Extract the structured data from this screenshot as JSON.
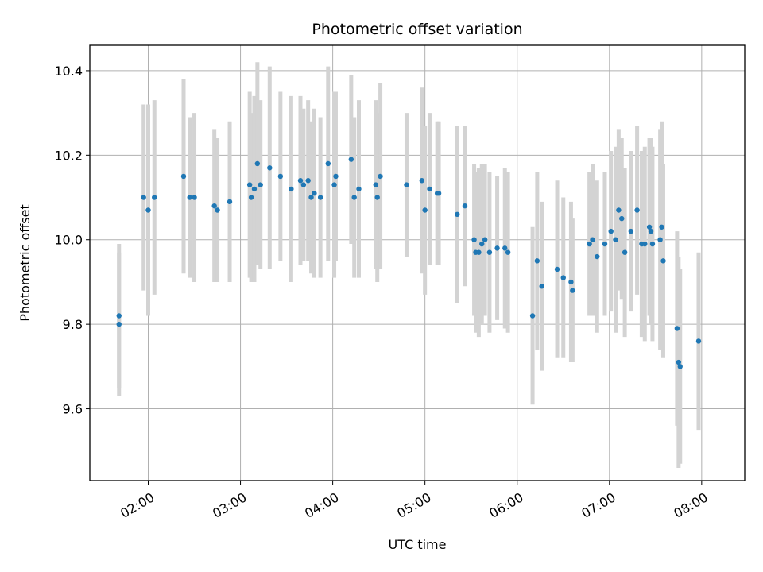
{
  "chart_data": {
    "type": "scatter",
    "title": "Photometric offset variation",
    "xlabel": "UTC time",
    "ylabel": "Photometric offset",
    "xlim": [
      "01:22",
      "08:28"
    ],
    "ylim": [
      9.43,
      10.46
    ],
    "xticks": [
      "02:00",
      "03:00",
      "04:00",
      "05:00",
      "06:00",
      "07:00",
      "08:00"
    ],
    "yticks": [
      "9.6",
      "9.8",
      "10.0",
      "10.2",
      "10.4"
    ],
    "grid": true,
    "colors": {
      "point": "#1f77b4",
      "errorbar": "#d3d3d3",
      "grid": "#b0b0b0"
    },
    "points": [
      [
        "01:41",
        9.8,
        0.17
      ],
      [
        "01:41",
        9.82,
        0.17
      ],
      [
        "01:57",
        10.1,
        0.22
      ],
      [
        "02:00",
        10.07,
        0.25
      ],
      [
        "02:04",
        10.1,
        0.23
      ],
      [
        "02:23",
        10.15,
        0.23
      ],
      [
        "02:27",
        10.1,
        0.19
      ],
      [
        "02:30",
        10.1,
        0.2
      ],
      [
        "02:43",
        10.08,
        0.18
      ],
      [
        "02:45",
        10.07,
        0.17
      ],
      [
        "02:53",
        10.09,
        0.19
      ],
      [
        "03:06",
        10.13,
        0.22
      ],
      [
        "03:07",
        10.1,
        0.2
      ],
      [
        "03:09",
        10.12,
        0.22
      ],
      [
        "03:11",
        10.18,
        0.24
      ],
      [
        "03:13",
        10.13,
        0.2
      ],
      [
        "03:19",
        10.17,
        0.24
      ],
      [
        "03:26",
        10.15,
        0.2
      ],
      [
        "03:33",
        10.12,
        0.22
      ],
      [
        "03:39",
        10.14,
        0.2
      ],
      [
        "03:41",
        10.13,
        0.18
      ],
      [
        "03:44",
        10.14,
        0.19
      ],
      [
        "03:46",
        10.1,
        0.18
      ],
      [
        "03:48",
        10.11,
        0.2
      ],
      [
        "03:52",
        10.1,
        0.19
      ],
      [
        "03:57",
        10.18,
        0.23
      ],
      [
        "04:01",
        10.13,
        0.22
      ],
      [
        "04:02",
        10.15,
        0.2
      ],
      [
        "04:12",
        10.19,
        0.2
      ],
      [
        "04:14",
        10.1,
        0.19
      ],
      [
        "04:17",
        10.12,
        0.21
      ],
      [
        "04:28",
        10.13,
        0.2
      ],
      [
        "04:29",
        10.1,
        0.2
      ],
      [
        "04:31",
        10.15,
        0.22
      ],
      [
        "04:48",
        10.13,
        0.17
      ],
      [
        "04:58",
        10.14,
        0.22
      ],
      [
        "05:00",
        10.07,
        0.2
      ],
      [
        "05:03",
        10.12,
        0.18
      ],
      [
        "05:08",
        10.11,
        0.17
      ],
      [
        "05:09",
        10.11,
        0.17
      ],
      [
        "05:21",
        10.06,
        0.21
      ],
      [
        "05:26",
        10.08,
        0.19
      ],
      [
        "05:32",
        10.0,
        0.18
      ],
      [
        "05:33",
        9.97,
        0.19
      ],
      [
        "05:35",
        9.97,
        0.2
      ],
      [
        "05:37",
        9.99,
        0.19
      ],
      [
        "05:39",
        10.0,
        0.18
      ],
      [
        "05:42",
        9.97,
        0.19
      ],
      [
        "05:47",
        9.98,
        0.17
      ],
      [
        "05:52",
        9.98,
        0.19
      ],
      [
        "05:54",
        9.97,
        0.19
      ],
      [
        "06:10",
        9.82,
        0.21
      ],
      [
        "06:13",
        9.95,
        0.21
      ],
      [
        "06:16",
        9.89,
        0.2
      ],
      [
        "06:26",
        9.93,
        0.21
      ],
      [
        "06:30",
        9.91,
        0.19
      ],
      [
        "06:35",
        9.9,
        0.19
      ],
      [
        "06:36",
        9.88,
        0.17
      ],
      [
        "06:47",
        9.99,
        0.17
      ],
      [
        "06:49",
        10.0,
        0.18
      ],
      [
        "06:52",
        9.96,
        0.18
      ],
      [
        "06:57",
        9.99,
        0.17
      ],
      [
        "07:01",
        10.02,
        0.19
      ],
      [
        "07:04",
        10.0,
        0.22
      ],
      [
        "07:06",
        10.07,
        0.19
      ],
      [
        "07:08",
        10.05,
        0.19
      ],
      [
        "07:10",
        9.97,
        0.2
      ],
      [
        "07:14",
        10.02,
        0.19
      ],
      [
        "07:18",
        10.07,
        0.2
      ],
      [
        "07:21",
        9.99,
        0.22
      ],
      [
        "07:23",
        9.99,
        0.23
      ],
      [
        "07:26",
        10.03,
        0.21
      ],
      [
        "07:27",
        10.02,
        0.22
      ],
      [
        "07:28",
        9.99,
        0.23
      ],
      [
        "07:33",
        10.0,
        0.26
      ],
      [
        "07:34",
        10.03,
        0.25
      ],
      [
        "07:35",
        9.95,
        0.23
      ],
      [
        "07:44",
        9.79,
        0.23
      ],
      [
        "07:45",
        9.71,
        0.25
      ],
      [
        "07:46",
        9.7,
        0.23
      ],
      [
        "07:58",
        9.76,
        0.21
      ]
    ]
  }
}
